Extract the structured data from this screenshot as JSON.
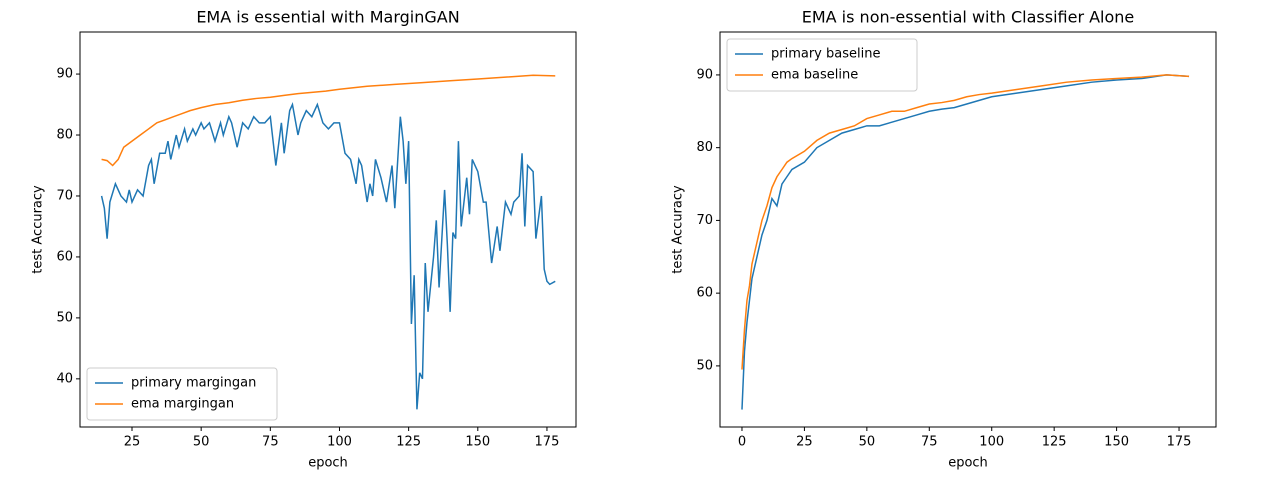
{
  "chart_data": [
    {
      "type": "line",
      "title": "EMA is essential with MarginGAN",
      "x_label": "epoch",
      "y_label": "test Accuracy",
      "xlim": [
        6.2,
        185.5
      ],
      "ylim": [
        32.1,
        96.9
      ],
      "xticks": [
        25,
        50,
        75,
        100,
        125,
        150,
        175
      ],
      "yticks": [
        40,
        50,
        60,
        70,
        80,
        90
      ],
      "legend": "lower left",
      "grid": false,
      "series": [
        {
          "name": "primary margingan",
          "color": "#1f77b4",
          "x": [
            14,
            15,
            16,
            17,
            19,
            21,
            23,
            24,
            25,
            27,
            29,
            31,
            32,
            33,
            35,
            37,
            38,
            39,
            41,
            42,
            44,
            45,
            47,
            48,
            50,
            51,
            53,
            55,
            57,
            58,
            60,
            61,
            63,
            65,
            67,
            69,
            71,
            73,
            75,
            77,
            79,
            80,
            82,
            83,
            85,
            86,
            88,
            90,
            92,
            94,
            96,
            98,
            100,
            102,
            104,
            106,
            107,
            108,
            110,
            111,
            112,
            113,
            115,
            117,
            119,
            120,
            122,
            123,
            124,
            125,
            126,
            127,
            128,
            129,
            130,
            131,
            132,
            134,
            135,
            136,
            138,
            139,
            140,
            141,
            142,
            143,
            144,
            146,
            147,
            148,
            150,
            152,
            153,
            155,
            157,
            158,
            160,
            162,
            163,
            165,
            166,
            167,
            168,
            170,
            171,
            173,
            174,
            175,
            176,
            178
          ],
          "values": [
            70,
            68,
            63,
            69,
            72,
            70,
            69,
            71,
            69,
            71,
            70,
            75,
            76,
            72,
            77,
            77,
            79,
            76,
            80,
            78,
            81,
            79,
            81,
            80,
            82,
            81,
            82,
            79,
            82,
            80,
            83,
            82,
            78,
            82,
            81,
            83,
            82,
            82,
            83,
            75,
            82,
            77,
            84,
            85,
            80,
            82,
            84,
            83,
            85,
            82,
            81,
            82,
            82,
            77,
            76,
            72,
            76,
            75,
            69,
            72,
            70,
            76,
            73,
            69,
            75,
            68,
            83,
            79,
            72,
            79,
            49,
            57,
            35,
            41,
            40,
            59,
            51,
            60,
            66,
            55,
            71,
            62,
            51,
            64,
            63,
            79,
            65,
            73,
            67,
            76,
            74,
            69,
            69,
            59,
            65,
            61,
            69,
            67,
            69,
            70,
            77,
            65,
            75,
            74,
            63,
            70,
            58,
            56,
            55.5,
            56
          ]
        },
        {
          "name": "ema margingan",
          "color": "#ff7f0e",
          "x": [
            14,
            16,
            18,
            20,
            22,
            25,
            28,
            31,
            34,
            37,
            40,
            43,
            46,
            50,
            55,
            60,
            65,
            70,
            75,
            80,
            85,
            90,
            95,
            100,
            110,
            120,
            130,
            140,
            150,
            160,
            170,
            178
          ],
          "values": [
            76,
            75.8,
            75,
            76,
            78,
            79,
            80,
            81,
            82,
            82.5,
            83,
            83.5,
            84,
            84.5,
            85,
            85.3,
            85.7,
            86,
            86.2,
            86.5,
            86.8,
            87,
            87.2,
            87.5,
            88,
            88.3,
            88.6,
            88.9,
            89.2,
            89.5,
            89.8,
            89.7
          ]
        }
      ]
    },
    {
      "type": "line",
      "title": "EMA is non-essential with Classifier Alone",
      "x_label": "epoch",
      "y_label": "test Accuracy",
      "xlim": [
        -8.8,
        189.8
      ],
      "ylim": [
        41.6,
        95.9
      ],
      "xticks": [
        0,
        25,
        50,
        75,
        100,
        125,
        150,
        175
      ],
      "yticks": [
        50,
        60,
        70,
        80,
        90
      ],
      "legend": "upper left",
      "grid": false,
      "series": [
        {
          "name": "primary baseline",
          "color": "#1f77b4",
          "x": [
            0,
            1,
            2,
            3,
            4,
            6,
            8,
            10,
            12,
            14,
            16,
            18,
            20,
            25,
            30,
            35,
            40,
            45,
            50,
            55,
            60,
            65,
            70,
            75,
            80,
            85,
            90,
            95,
            100,
            110,
            120,
            130,
            140,
            150,
            160,
            170,
            179
          ],
          "values": [
            44,
            52,
            56,
            59,
            62,
            65,
            68,
            70,
            73,
            72,
            75,
            76,
            77,
            78,
            80,
            81,
            82,
            82.5,
            83,
            83,
            83.5,
            84,
            84.5,
            85,
            85.3,
            85.5,
            86,
            86.5,
            87,
            87.5,
            88,
            88.5,
            89,
            89.3,
            89.5,
            90,
            89.8
          ]
        },
        {
          "name": "ema baseline",
          "color": "#ff7f0e",
          "x": [
            0,
            1,
            2,
            3,
            4,
            6,
            8,
            10,
            12,
            14,
            16,
            18,
            20,
            25,
            30,
            35,
            40,
            45,
            50,
            55,
            60,
            65,
            70,
            75,
            80,
            85,
            90,
            95,
            100,
            110,
            120,
            130,
            140,
            150,
            160,
            170,
            179
          ],
          "values": [
            49.5,
            55,
            59,
            61,
            64,
            67,
            70,
            72,
            74.5,
            76,
            77,
            78,
            78.5,
            79.5,
            81,
            82,
            82.5,
            83,
            84,
            84.5,
            85,
            85,
            85.5,
            86,
            86.2,
            86.5,
            87,
            87.3,
            87.5,
            88,
            88.5,
            89,
            89.3,
            89.5,
            89.7,
            90,
            89.8
          ]
        }
      ]
    }
  ]
}
